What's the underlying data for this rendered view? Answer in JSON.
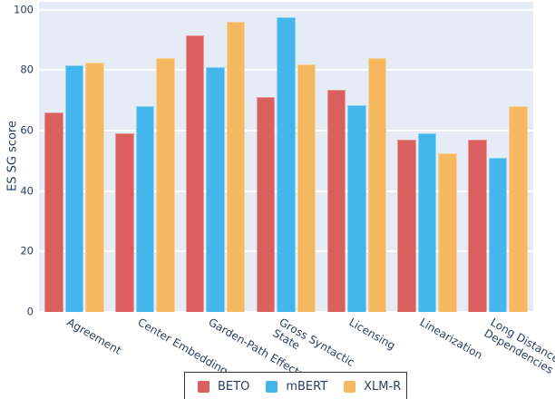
{
  "figure": {
    "background": "#ffffff",
    "plot_background": "#e5ecf6",
    "grid_color": "#ffffff",
    "font_color": "#2a3f5f",
    "legend_border_color": "#333333"
  },
  "chart_data": {
    "type": "bar",
    "title": "",
    "xlabel": "",
    "ylabel": "ES SG score",
    "categories": [
      "Agreement",
      "Center Embedding",
      "Garden-Path Effects",
      "Gross Syntactic\nState",
      "Licensing",
      "Linearization",
      "Long Distance\nDependencies"
    ],
    "series": [
      {
        "name": "BETO",
        "color": "#d9605e",
        "values": [
          66,
          59,
          91.5,
          71,
          73.5,
          57,
          57
        ]
      },
      {
        "name": "mBERT",
        "color": "#45b6ec",
        "values": [
          81.5,
          68,
          81,
          97.5,
          68.5,
          59,
          51
        ]
      },
      {
        "name": "XLM-R",
        "color": "#f5b961",
        "values": [
          82.5,
          84,
          96,
          82,
          84,
          52.5,
          68
        ]
      }
    ],
    "yticks": [
      0,
      20,
      40,
      60,
      80,
      100
    ],
    "ylim": [
      0,
      102.6
    ],
    "grid": true,
    "legend_position": "bottom-center",
    "xtick_angle_deg": 30
  }
}
